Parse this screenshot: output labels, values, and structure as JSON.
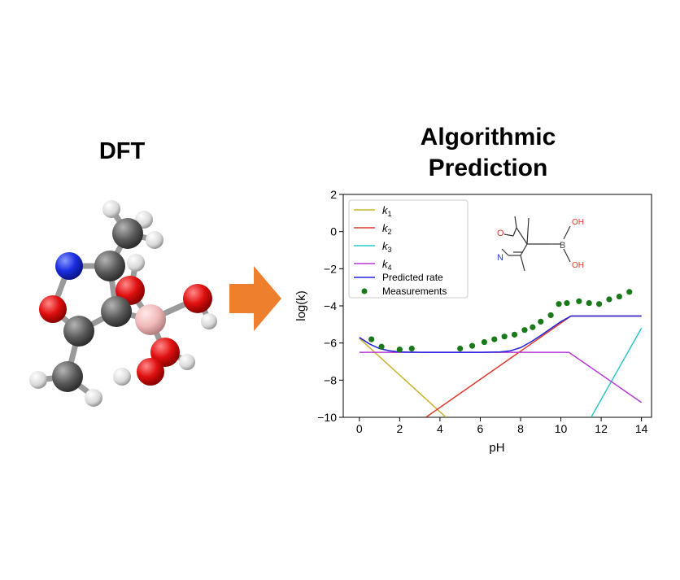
{
  "left_panel": {
    "title": "DFT"
  },
  "right_panel": {
    "title_line1": "Algorithmic",
    "title_line2": "Prediction"
  },
  "colors": {
    "k1": "#c9b22a",
    "k2": "#e03a2e",
    "k3": "#2fc7c7",
    "k4": "#b63ad6",
    "predicted": "#2222dd",
    "measurements": "#1a7a1a",
    "arrow": "#ee7f2d",
    "carbon": "#555555",
    "hydrogen": "#e6e6e6",
    "oxygen": "#e01010",
    "nitrogen": "#1a2ee0",
    "boron": "#f0b8b8"
  },
  "structure_labels": {
    "o_ring": "O",
    "n_ring": "N",
    "boron": "B",
    "oh_top": "OH",
    "oh_bottom": "OH"
  },
  "chart_data": {
    "type": "line",
    "xlabel": "pH",
    "ylabel": "log(k)",
    "xlim": [
      -0.8,
      14.5
    ],
    "ylim": [
      -10,
      2
    ],
    "xticks": [
      0,
      2,
      4,
      6,
      8,
      10,
      12,
      14
    ],
    "yticks": [
      2,
      0,
      -2,
      -4,
      -6,
      -8,
      -10
    ],
    "xtick_labels": [
      "0",
      "2",
      "4",
      "6",
      "8",
      "10",
      "12",
      "14"
    ],
    "ytick_labels": [
      "2",
      "0",
      "−2",
      "−4",
      "−6",
      "−8",
      "−10"
    ],
    "legend_position": "top-left",
    "series": [
      {
        "key": "k1",
        "label_base": "k",
        "label_sub": "1",
        "x": [
          0,
          4.3
        ],
        "y": [
          -5.75,
          -10
        ]
      },
      {
        "key": "k2",
        "label_base": "k",
        "label_sub": "2",
        "x": [
          3.3,
          10.5,
          14
        ],
        "y": [
          -10,
          -4.55,
          -4.55
        ]
      },
      {
        "key": "k3",
        "label_base": "k",
        "label_sub": "3",
        "x": [
          11.5,
          14
        ],
        "y": [
          -10,
          -5.2
        ]
      },
      {
        "key": "k4",
        "label_base": "k",
        "label_sub": "4",
        "x": [
          0,
          10.4,
          14
        ],
        "y": [
          -6.5,
          -6.5,
          -9.2
        ]
      },
      {
        "key": "predicted",
        "label": "Predicted rate",
        "x": [
          0,
          0.5,
          1,
          1.5,
          2,
          3,
          4,
          5,
          6,
          7,
          7.5,
          8,
          8.5,
          9,
          9.5,
          10,
          10.5,
          11,
          12,
          13,
          14
        ],
        "y": [
          -5.7,
          -6.05,
          -6.3,
          -6.42,
          -6.48,
          -6.5,
          -6.5,
          -6.5,
          -6.5,
          -6.48,
          -6.42,
          -6.25,
          -5.95,
          -5.6,
          -5.22,
          -4.85,
          -4.55,
          -4.55,
          -4.55,
          -4.55,
          -4.55
        ]
      }
    ],
    "measurements": {
      "label": "Measurements",
      "x": [
        0.6,
        1.1,
        2.0,
        2.6,
        5.0,
        5.6,
        6.2,
        6.7,
        7.2,
        7.7,
        8.2,
        8.6,
        9.0,
        9.5,
        9.9,
        10.3,
        10.9,
        11.4,
        11.9,
        12.4,
        12.9,
        13.4
      ],
      "y": [
        -5.8,
        -6.2,
        -6.35,
        -6.3,
        -6.3,
        -6.15,
        -5.95,
        -5.8,
        -5.65,
        -5.55,
        -5.3,
        -5.15,
        -4.85,
        -4.5,
        -3.9,
        -3.85,
        -3.75,
        -3.85,
        -3.9,
        -3.65,
        -3.5,
        -3.25
      ]
    }
  }
}
